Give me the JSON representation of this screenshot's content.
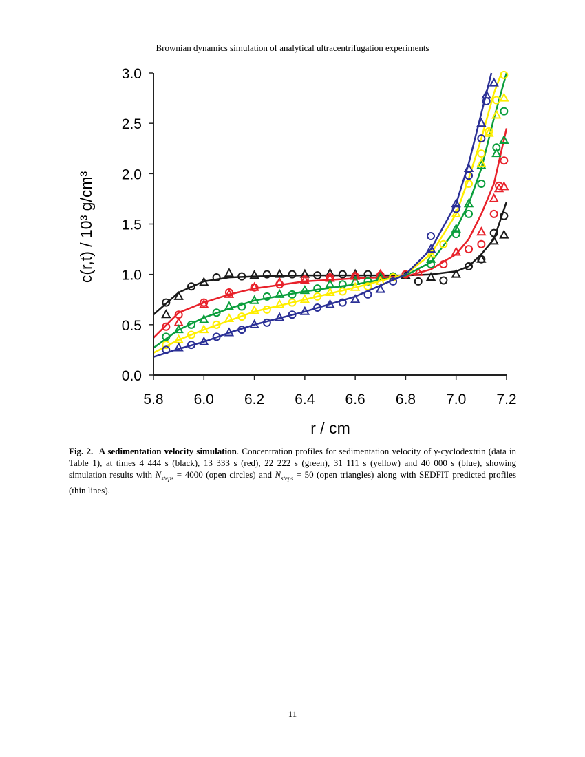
{
  "running_head": "Brownian dynamics simulation of analytical ultracentrifugation experiments",
  "caption": {
    "label": "Fig. 2.",
    "title": "A sedimentation velocity simulation",
    "text_1": ". Concentration profiles for sedimentation velocity of γ-cyclodextrin (data in Table 1), at times 4 444 s (black), 13 333 s (red), 22 222 s (green), 31 111 s (yellow) and 40 000 s (blue), showing simulation results with ",
    "n": "N",
    "sub": "steps",
    "text_2": " = 4000 (open circles) and ",
    "text_3": " = 50 (open triangles) along with SEDFIT predicted profiles (thin lines)."
  },
  "page_number": "11",
  "chart_data": {
    "type": "scatter",
    "xlabel": "r / cm",
    "ylabel": "c(r,t)  / 10³ g/cm³",
    "xlim": [
      5.8,
      7.2
    ],
    "ylim": [
      0.0,
      3.0
    ],
    "xticks": [
      "5.8",
      "6.0",
      "6.2",
      "6.4",
      "6.6",
      "6.8",
      "7.0",
      "7.2"
    ],
    "yticks": [
      "0.0",
      "0.5",
      "1.0",
      "1.5",
      "2.0",
      "2.5",
      "3.0"
    ],
    "grid": false,
    "series": [
      {
        "color": "#1a1a1a",
        "line": [
          [
            5.8,
            0.6
          ],
          [
            5.9,
            0.82
          ],
          [
            6.0,
            0.93
          ],
          [
            6.1,
            0.97
          ],
          [
            6.2,
            0.98
          ],
          [
            6.4,
            0.99
          ],
          [
            6.6,
            0.99
          ],
          [
            6.8,
            0.99
          ],
          [
            6.9,
            1.0
          ],
          [
            7.0,
            1.03
          ],
          [
            7.05,
            1.08
          ],
          [
            7.1,
            1.2
          ],
          [
            7.15,
            1.35
          ],
          [
            7.2,
            1.72
          ]
        ],
        "circles": [
          [
            5.85,
            0.72
          ],
          [
            5.95,
            0.88
          ],
          [
            6.05,
            0.97
          ],
          [
            6.15,
            0.98
          ],
          [
            6.25,
            1.0
          ],
          [
            6.35,
            1.0
          ],
          [
            6.45,
            0.99
          ],
          [
            6.55,
            1.0
          ],
          [
            6.65,
            1.0
          ],
          [
            6.75,
            0.98
          ],
          [
            6.85,
            0.93
          ],
          [
            6.95,
            0.94
          ],
          [
            7.05,
            1.08
          ],
          [
            7.1,
            1.15
          ],
          [
            7.15,
            1.41
          ],
          [
            7.19,
            1.58
          ]
        ],
        "triangles": [
          [
            5.85,
            0.6
          ],
          [
            5.9,
            0.78
          ],
          [
            6.0,
            0.92
          ],
          [
            6.1,
            1.01
          ],
          [
            6.2,
            0.99
          ],
          [
            6.3,
            1.0
          ],
          [
            6.4,
            1.0
          ],
          [
            6.5,
            1.01
          ],
          [
            6.6,
            1.0
          ],
          [
            6.7,
            0.99
          ],
          [
            6.8,
            0.99
          ],
          [
            6.9,
            0.97
          ],
          [
            7.0,
            1.0
          ],
          [
            7.1,
            1.15
          ],
          [
            7.15,
            1.33
          ],
          [
            7.19,
            1.39
          ]
        ]
      },
      {
        "color": "#e8212a",
        "line": [
          [
            5.8,
            0.37
          ],
          [
            5.9,
            0.62
          ],
          [
            6.0,
            0.72
          ],
          [
            6.1,
            0.8
          ],
          [
            6.2,
            0.86
          ],
          [
            6.4,
            0.93
          ],
          [
            6.6,
            0.96
          ],
          [
            6.8,
            0.98
          ],
          [
            6.9,
            1.05
          ],
          [
            7.0,
            1.2
          ],
          [
            7.05,
            1.35
          ],
          [
            7.1,
            1.6
          ],
          [
            7.15,
            1.9
          ],
          [
            7.2,
            2.45
          ]
        ],
        "circles": [
          [
            5.85,
            0.48
          ],
          [
            5.9,
            0.6
          ],
          [
            6.0,
            0.72
          ],
          [
            6.1,
            0.82
          ],
          [
            6.2,
            0.87
          ],
          [
            6.3,
            0.9
          ],
          [
            6.4,
            0.95
          ],
          [
            6.5,
            0.97
          ],
          [
            6.6,
            0.98
          ],
          [
            6.7,
            0.99
          ],
          [
            6.8,
            1.0
          ],
          [
            6.95,
            1.1
          ],
          [
            7.05,
            1.25
          ],
          [
            7.1,
            1.3
          ],
          [
            7.15,
            1.6
          ],
          [
            7.17,
            1.88
          ],
          [
            7.19,
            2.13
          ]
        ],
        "triangles": [
          [
            5.9,
            0.52
          ],
          [
            6.0,
            0.7
          ],
          [
            6.1,
            0.8
          ],
          [
            6.2,
            0.87
          ],
          [
            6.3,
            0.92
          ],
          [
            6.4,
            0.94
          ],
          [
            6.5,
            0.96
          ],
          [
            6.6,
            0.98
          ],
          [
            6.7,
            1.0
          ],
          [
            6.85,
            1.02
          ],
          [
            7.0,
            1.22
          ],
          [
            7.1,
            1.42
          ],
          [
            7.15,
            1.75
          ],
          [
            7.17,
            1.85
          ],
          [
            7.19,
            1.87
          ]
        ]
      },
      {
        "color": "#0a9e3c",
        "line": [
          [
            5.8,
            0.27
          ],
          [
            5.9,
            0.45
          ],
          [
            6.0,
            0.57
          ],
          [
            6.1,
            0.66
          ],
          [
            6.2,
            0.74
          ],
          [
            6.4,
            0.83
          ],
          [
            6.6,
            0.9
          ],
          [
            6.8,
            0.99
          ],
          [
            6.9,
            1.12
          ],
          [
            7.0,
            1.45
          ],
          [
            7.05,
            1.7
          ],
          [
            7.1,
            2.05
          ],
          [
            7.15,
            2.55
          ],
          [
            7.2,
            3.0
          ]
        ],
        "circles": [
          [
            5.85,
            0.38
          ],
          [
            5.95,
            0.5
          ],
          [
            6.05,
            0.62
          ],
          [
            6.15,
            0.68
          ],
          [
            6.25,
            0.78
          ],
          [
            6.35,
            0.8
          ],
          [
            6.45,
            0.86
          ],
          [
            6.55,
            0.9
          ],
          [
            6.65,
            0.93
          ],
          [
            6.75,
            0.98
          ],
          [
            6.9,
            1.1
          ],
          [
            7.0,
            1.4
          ],
          [
            7.05,
            1.6
          ],
          [
            7.1,
            1.9
          ],
          [
            7.16,
            2.26
          ],
          [
            7.19,
            2.62
          ]
        ],
        "triangles": [
          [
            5.9,
            0.45
          ],
          [
            6.0,
            0.55
          ],
          [
            6.1,
            0.68
          ],
          [
            6.2,
            0.74
          ],
          [
            6.3,
            0.8
          ],
          [
            6.4,
            0.84
          ],
          [
            6.5,
            0.9
          ],
          [
            6.6,
            0.93
          ],
          [
            6.7,
            0.97
          ],
          [
            6.9,
            1.15
          ],
          [
            7.0,
            1.45
          ],
          [
            7.05,
            1.7
          ],
          [
            7.1,
            2.08
          ],
          [
            7.16,
            2.2
          ],
          [
            7.19,
            2.33
          ]
        ]
      },
      {
        "color": "#ffee00",
        "line": [
          [
            5.8,
            0.22
          ],
          [
            5.9,
            0.35
          ],
          [
            6.0,
            0.45
          ],
          [
            6.1,
            0.54
          ],
          [
            6.2,
            0.63
          ],
          [
            6.4,
            0.75
          ],
          [
            6.6,
            0.87
          ],
          [
            6.8,
            1.0
          ],
          [
            6.9,
            1.2
          ],
          [
            7.0,
            1.6
          ],
          [
            7.05,
            1.95
          ],
          [
            7.1,
            2.35
          ],
          [
            7.15,
            2.8
          ],
          [
            7.18,
            3.0
          ]
        ],
        "circles": [
          [
            5.85,
            0.3
          ],
          [
            5.95,
            0.4
          ],
          [
            6.05,
            0.5
          ],
          [
            6.15,
            0.58
          ],
          [
            6.25,
            0.65
          ],
          [
            6.35,
            0.72
          ],
          [
            6.45,
            0.78
          ],
          [
            6.55,
            0.83
          ],
          [
            6.65,
            0.88
          ],
          [
            6.75,
            0.97
          ],
          [
            6.95,
            1.3
          ],
          [
            7.05,
            1.9
          ],
          [
            7.1,
            2.2
          ],
          [
            7.13,
            2.42
          ],
          [
            7.16,
            2.73
          ],
          [
            7.19,
            2.98
          ]
        ],
        "triangles": [
          [
            5.9,
            0.35
          ],
          [
            6.0,
            0.45
          ],
          [
            6.1,
            0.56
          ],
          [
            6.2,
            0.64
          ],
          [
            6.3,
            0.7
          ],
          [
            6.4,
            0.75
          ],
          [
            6.5,
            0.82
          ],
          [
            6.6,
            0.87
          ],
          [
            6.7,
            0.93
          ],
          [
            6.9,
            1.2
          ],
          [
            7.0,
            1.6
          ],
          [
            7.1,
            2.1
          ],
          [
            7.13,
            2.4
          ],
          [
            7.16,
            2.58
          ],
          [
            7.19,
            2.75
          ]
        ]
      },
      {
        "color": "#2b3096",
        "line": [
          [
            5.8,
            0.18
          ],
          [
            5.9,
            0.26
          ],
          [
            6.0,
            0.33
          ],
          [
            6.1,
            0.42
          ],
          [
            6.2,
            0.5
          ],
          [
            6.4,
            0.63
          ],
          [
            6.6,
            0.78
          ],
          [
            6.8,
            1.0
          ],
          [
            6.9,
            1.25
          ],
          [
            7.0,
            1.7
          ],
          [
            7.05,
            2.1
          ],
          [
            7.1,
            2.6
          ],
          [
            7.14,
            3.0
          ]
        ],
        "circles": [
          [
            5.85,
            0.25
          ],
          [
            5.95,
            0.3
          ],
          [
            6.05,
            0.38
          ],
          [
            6.15,
            0.45
          ],
          [
            6.25,
            0.52
          ],
          [
            6.35,
            0.6
          ],
          [
            6.45,
            0.67
          ],
          [
            6.55,
            0.72
          ],
          [
            6.65,
            0.8
          ],
          [
            6.75,
            0.93
          ],
          [
            6.9,
            1.38
          ],
          [
            7.0,
            1.65
          ],
          [
            7.05,
            1.98
          ],
          [
            7.1,
            2.35
          ],
          [
            7.12,
            2.72
          ]
        ],
        "triangles": [
          [
            5.9,
            0.27
          ],
          [
            6.0,
            0.33
          ],
          [
            6.1,
            0.42
          ],
          [
            6.2,
            0.5
          ],
          [
            6.3,
            0.57
          ],
          [
            6.4,
            0.63
          ],
          [
            6.5,
            0.7
          ],
          [
            6.6,
            0.75
          ],
          [
            6.7,
            0.85
          ],
          [
            6.9,
            1.25
          ],
          [
            7.0,
            1.7
          ],
          [
            7.05,
            2.05
          ],
          [
            7.1,
            2.5
          ],
          [
            7.12,
            2.78
          ],
          [
            7.15,
            2.9
          ]
        ]
      }
    ]
  }
}
